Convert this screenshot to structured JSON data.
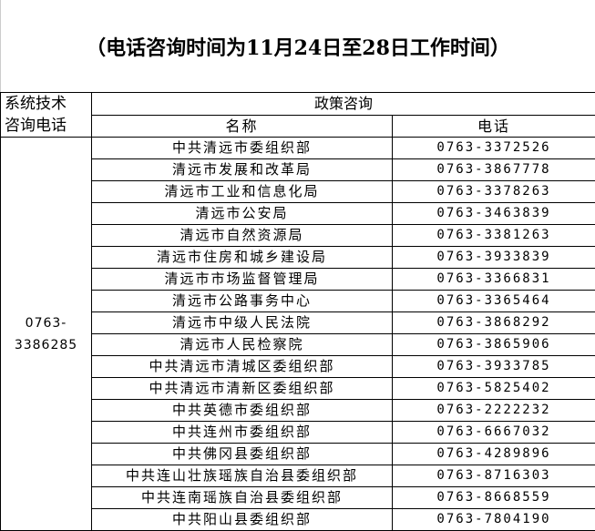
{
  "title": "（电话咨询时间为11月24日至28日工作时间）",
  "table": {
    "system_header": [
      "系统技术",
      "咨询电话"
    ],
    "group_header": "政策咨询",
    "col_name": "名称",
    "col_phone": "电话",
    "tech_phone": [
      "0763-",
      "3386285"
    ],
    "rows": [
      {
        "name": "中共清远市委组织部",
        "phone": "0763-3372526"
      },
      {
        "name": "清远市发展和改革局",
        "phone": "0763-3867778"
      },
      {
        "name": "清远市工业和信息化局",
        "phone": "0763-3378263"
      },
      {
        "name": "清远市公安局",
        "phone": "0763-3463839"
      },
      {
        "name": "清远市自然资源局",
        "phone": "0763-3381263"
      },
      {
        "name": "清远市住房和城乡建设局",
        "phone": "0763-3933839"
      },
      {
        "name": "清远市市场监督管理局",
        "phone": "0763-3366831"
      },
      {
        "name": "清远市公路事务中心",
        "phone": "0763-3365464"
      },
      {
        "name": "清远市中级人民法院",
        "phone": "0763-3868292"
      },
      {
        "name": "清远市人民检察院",
        "phone": "0763-3865906"
      },
      {
        "name": "中共清远市清城区委组织部",
        "phone": "0763-3933785"
      },
      {
        "name": "中共清远市清新区委组织部",
        "phone": "0763-5825402"
      },
      {
        "name": "中共英德市委组织部",
        "phone": "0763-2222232"
      },
      {
        "name": "中共连州市委组织部",
        "phone": "0763-6667032"
      },
      {
        "name": "中共佛冈县委组织部",
        "phone": "0763-4289896"
      },
      {
        "name": "中共连山壮族瑶族自治县委组织部",
        "phone": "0763-8716303"
      },
      {
        "name": "中共连南瑶族自治县委组织部",
        "phone": "0763-8668559"
      },
      {
        "name": "中共阳山县委组织部",
        "phone": "0763-7804190"
      }
    ]
  }
}
